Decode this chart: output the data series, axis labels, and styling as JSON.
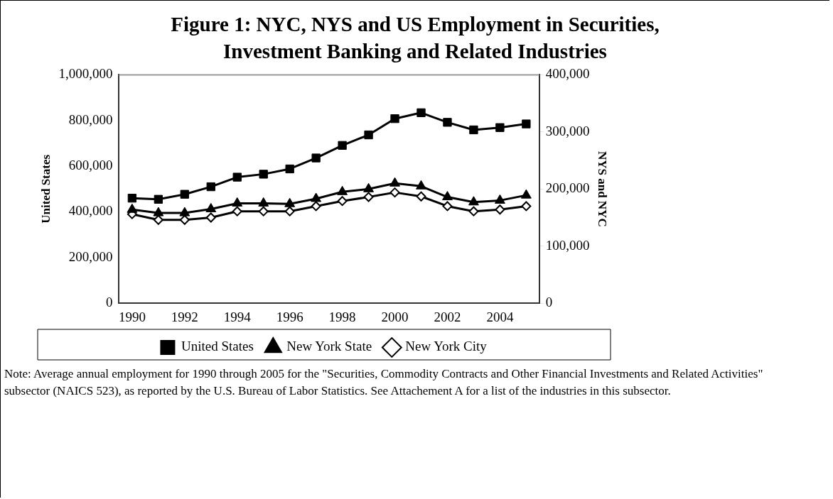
{
  "chart_data": {
    "type": "line",
    "title": "Figure 1: NYC, NYS and US Employment in Securities, Investment Banking and Related Industries",
    "ylabel": "United States",
    "y2label": "NYS and NYC",
    "x": [
      1990,
      1991,
      1992,
      1993,
      1994,
      1995,
      1996,
      1997,
      1998,
      1999,
      2000,
      2001,
      2002,
      2003,
      2004,
      2005
    ],
    "xlim": [
      1989.5,
      2005.5
    ],
    "xticks": [
      1990,
      1992,
      1994,
      1996,
      1998,
      2000,
      2002,
      2004
    ],
    "ylim": [
      0,
      1000000
    ],
    "yticks": [
      0,
      {
        "value": 200000,
        "label": "200,000"
      },
      {
        "value": 400000,
        "label": "400,000"
      },
      {
        "value": 600000,
        "label": "600,000"
      },
      {
        "value": 800000,
        "label": "800,000"
      },
      {
        "value": 1000000,
        "label": "1,000,000"
      }
    ],
    "y2lim": [
      0,
      400000
    ],
    "y2ticks": [
      0,
      {
        "value": 100000,
        "label": "100,000"
      },
      {
        "value": 200000,
        "label": "200,000"
      },
      {
        "value": 300000,
        "label": "300,000"
      },
      {
        "value": 400000,
        "label": "400,000"
      }
    ],
    "series": [
      {
        "name": "United States",
        "color": "#000000",
        "marker": "square",
        "values": [
          460000,
          455000,
          477000,
          510000,
          552000,
          565000,
          588000,
          636000,
          691000,
          737000,
          808000,
          834000,
          792000,
          759000,
          769000,
          785000
        ]
      },
      {
        "name": "New York State",
        "color": "#000000",
        "marker": "triangle",
        "axis": "y2",
        "values": [
          164000,
          158000,
          158000,
          165000,
          175000,
          175000,
          174000,
          183000,
          195000,
          200000,
          210000,
          205000,
          186000,
          177000,
          180000,
          189000
        ]
      },
      {
        "name": "New York City",
        "color": "#000000",
        "marker": "diamond",
        "axis": "y2",
        "values": [
          156000,
          146000,
          146000,
          150000,
          161000,
          161000,
          161000,
          170000,
          179000,
          186000,
          194000,
          187000,
          170000,
          161000,
          164000,
          170000
        ]
      }
    ],
    "grid": false,
    "legend": "bottom",
    "line_style": "solid",
    "annotations": [
      "Note: Average annual employment for 1990 through 2005 for the \"Securities, Commodity Contracts and Other Financial Investments and Related Activities\" subsector (NAICS 523), as reported by the U.S. Bureau of Labor Statistics.  See Attachement A for a list of the industries in this subsector."
    ]
  }
}
